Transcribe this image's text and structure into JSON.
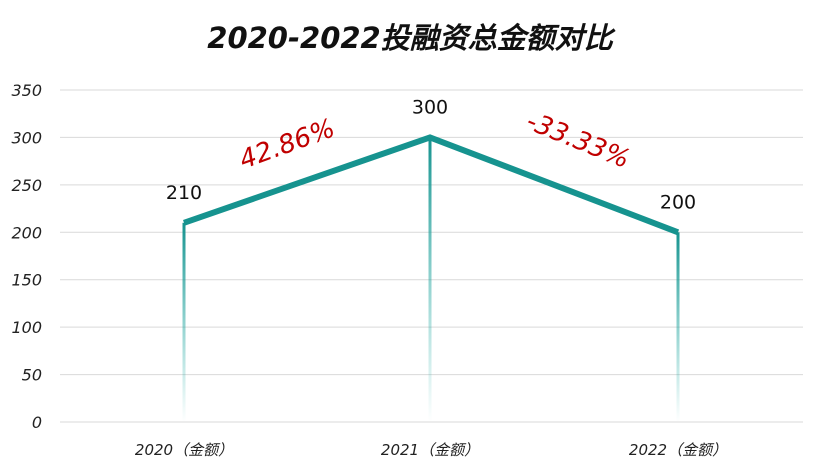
{
  "chart_data": {
    "type": "line",
    "title": "2020-2022投融资总金额对比",
    "categories": [
      "2020（金额）",
      "2021（金额）",
      "2022（金额）"
    ],
    "values": [
      210,
      300,
      200
    ],
    "data_labels": [
      "210",
      "300",
      "200"
    ],
    "yticks": [
      "0",
      "50",
      "100",
      "150",
      "200",
      "250",
      "300",
      "350"
    ],
    "ylim": [
      0,
      350
    ],
    "grid": true,
    "legend": "none",
    "annotations": [
      "42.86%",
      "-33.33%"
    ],
    "colors": {
      "line": "#16938f",
      "drop": "#2ab5ad",
      "annotation": "#c00000",
      "grid": "#d9d9d9"
    }
  }
}
